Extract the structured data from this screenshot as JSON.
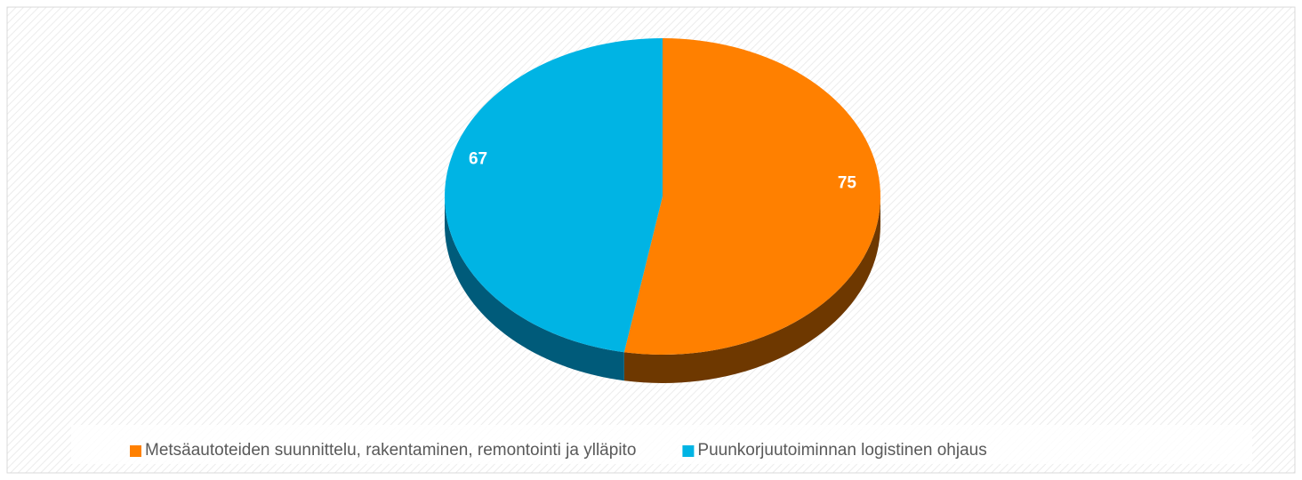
{
  "chart_data": {
    "type": "pie",
    "categories": [
      "Metsäautoteiden suunnittelu, rakentaminen, remontointi ja ylläpito",
      "Puunkorjuutoiminnan logistinen ohjaus"
    ],
    "values": [
      75,
      67
    ],
    "colors": [
      "#ff8000",
      "#00b4e4"
    ],
    "side_colors": [
      "#6e3800",
      "#005b7a"
    ],
    "legend": "bottom"
  }
}
